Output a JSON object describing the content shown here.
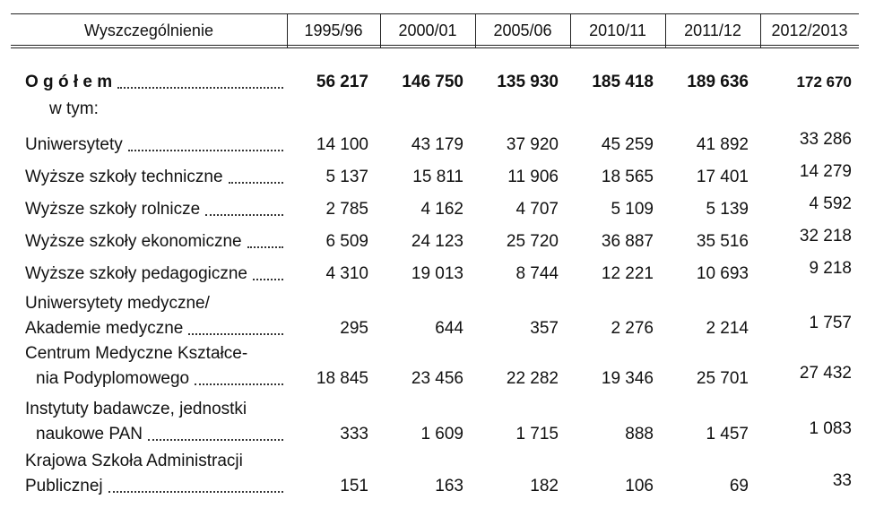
{
  "table": {
    "header": [
      "Wyszczególnienie",
      "1995/96",
      "2000/01",
      "2005/06",
      "2010/11",
      "2011/12",
      "2012/2013"
    ],
    "rows": [
      {
        "label": [
          "O g ó ł e m"
        ],
        "values": [
          "56 217",
          "146 750",
          "135 930",
          "185 418",
          "189 636",
          "172 670"
        ]
      },
      {
        "label": [
          "w tym:"
        ]
      },
      {
        "label": [
          "Uniwersytety"
        ],
        "values": [
          "14 100",
          "43 179",
          "37 920",
          "45 259",
          "41 892",
          "33 286"
        ]
      },
      {
        "label": [
          "Wyższe szkoły techniczne"
        ],
        "values": [
          "5 137",
          "15 811",
          "11 906",
          "18 565",
          "17 401",
          "14 279"
        ]
      },
      {
        "label": [
          "Wyższe szkoły rolnicze"
        ],
        "values": [
          "2 785",
          "4 162",
          "4 707",
          "5 109",
          "5 139",
          "4 592"
        ]
      },
      {
        "label": [
          "Wyższe szkoły ekonomiczne"
        ],
        "values": [
          "6 509",
          "24 123",
          "25 720",
          "36 887",
          "35 516",
          "32 218"
        ]
      },
      {
        "label": [
          "Wyższe szkoły pedagogiczne"
        ],
        "values": [
          "4 310",
          "19 013",
          "8 744",
          "12 221",
          "10 693",
          "9 218"
        ]
      },
      {
        "label": [
          "Uniwersytety medyczne/",
          "Akademie medyczne"
        ],
        "values": [
          "295",
          "644",
          "357",
          "2 276",
          "2 214",
          "1 757"
        ]
      },
      {
        "label": [
          "Centrum Medyczne Kształce-",
          "nia Podyplomowego"
        ],
        "values": [
          "18 845",
          "23 456",
          "22 282",
          "19 346",
          "25 701",
          "27 432"
        ]
      },
      {
        "label": [
          "Instytuty badawcze, jednostki",
          "naukowe PAN"
        ],
        "values": [
          "333",
          "1 609",
          "1 715",
          "888",
          "1 457",
          "1 083"
        ]
      },
      {
        "label": [
          "Krajowa Szkoła Administracji",
          "Publicznej"
        ],
        "values": [
          "151",
          "163",
          "182",
          "106",
          "69",
          "33"
        ]
      }
    ]
  }
}
